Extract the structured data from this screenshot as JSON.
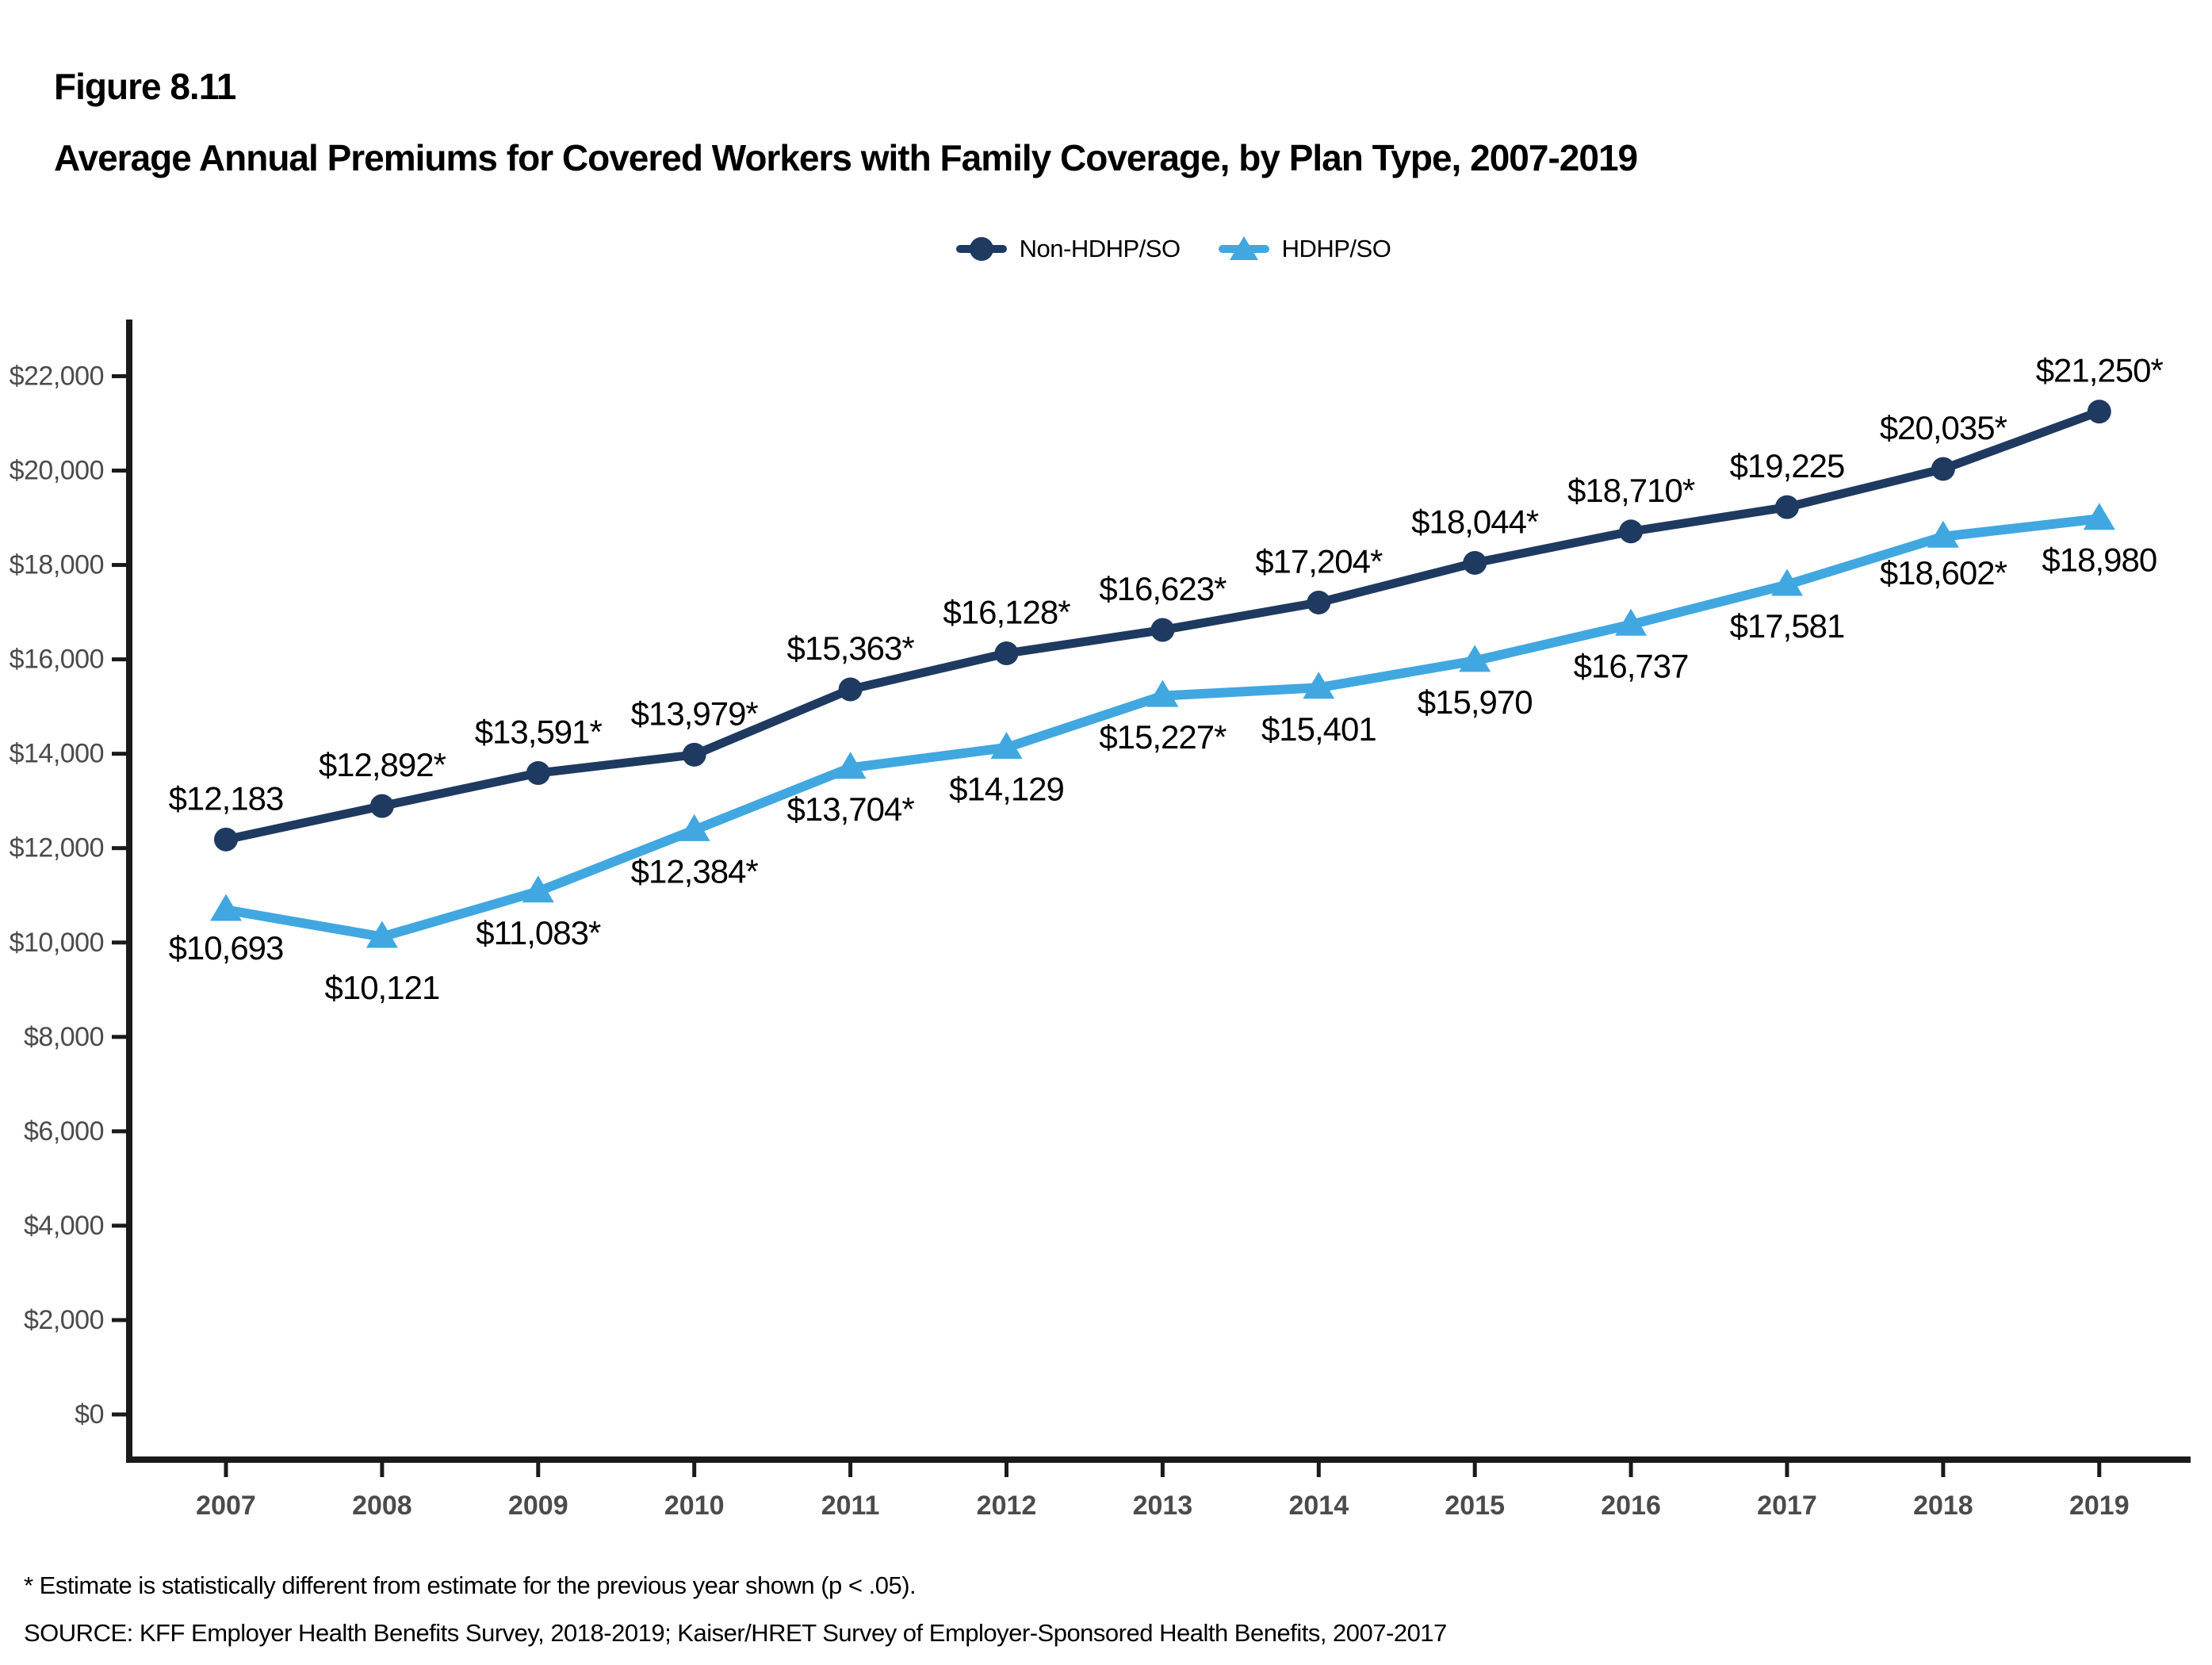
{
  "figure": {
    "label": "Figure 8.11",
    "title": "Average Annual Premiums for Covered Workers with Family Coverage, by Plan Type, 2007-2019"
  },
  "legend": [
    {
      "name": "Non-HDHP/SO",
      "color": "#1F3A60",
      "marker": "circle"
    },
    {
      "name": "HDHP/SO",
      "color": "#41A7E0",
      "marker": "triangle"
    }
  ],
  "footnotes": {
    "asterisk": "* Estimate is statistically different from estimate for the previous year shown (p < .05).",
    "source": "SOURCE: KFF Employer Health Benefits Survey, 2018-2019; Kaiser/HRET Survey of Employer-Sponsored Health Benefits, 2007-2017"
  },
  "chart_data": {
    "type": "line",
    "title": "Average Annual Premiums for Covered Workers with Family Coverage, by Plan Type, 2007-2019",
    "x": [
      "2007",
      "2008",
      "2009",
      "2010",
      "2011",
      "2012",
      "2013",
      "2014",
      "2015",
      "2016",
      "2017",
      "2018",
      "2019"
    ],
    "series": [
      {
        "name": "Non-HDHP/SO",
        "color": "#1F3A60",
        "marker": "circle",
        "values": [
          12183,
          12892,
          13591,
          13979,
          15363,
          16128,
          16623,
          17204,
          18044,
          18710,
          19225,
          20035,
          21250
        ],
        "labels": [
          "$12,183",
          "$12,892*",
          "$13,591*",
          "$13,979*",
          "$15,363*",
          "$16,128*",
          "$16,623*",
          "$17,204*",
          "$18,044*",
          "$18,710*",
          "$19,225",
          "$20,035*",
          "$21,250*"
        ]
      },
      {
        "name": "HDHP/SO",
        "color": "#41A7E0",
        "marker": "triangle",
        "values": [
          10693,
          10121,
          11083,
          12384,
          13704,
          14129,
          15227,
          15401,
          15970,
          16737,
          17581,
          18602,
          18980
        ],
        "labels": [
          "$10,693",
          "$10,121",
          "$11,083*",
          "$12,384*",
          "$13,704*",
          "$14,129",
          "$15,227*",
          "$15,401",
          "$15,970",
          "$16,737",
          "$17,581",
          "$18,602*",
          "$18,980"
        ]
      }
    ],
    "yticks": [
      "$0",
      "$2,000",
      "$4,000",
      "$6,000",
      "$8,000",
      "$10,000",
      "$12,000",
      "$14,000",
      "$16,000",
      "$18,000",
      "$20,000",
      "$22,000"
    ],
    "ytick_step": 2000,
    "ylim": [
      0,
      23000
    ],
    "grid": false,
    "legend_position": "top",
    "axis_color": "#1a1a1a",
    "tick_label_color": "#4b4b4b",
    "data_label_color": "#000000"
  }
}
